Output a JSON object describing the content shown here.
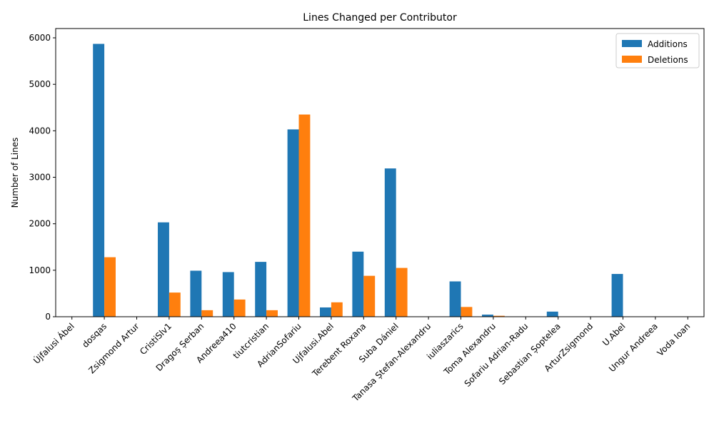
{
  "chart_data": {
    "type": "bar",
    "title": "Lines Changed per Contributor",
    "xlabel": "",
    "ylabel": "Number of Lines",
    "ylim": [
      0,
      6200
    ],
    "yticks": [
      0,
      1000,
      2000,
      3000,
      4000,
      5000,
      6000
    ],
    "legend_position": "top-right",
    "grid": false,
    "categories": [
      "Újfalusi Ábel",
      "dosqas",
      "Zsigmond Artur",
      "CristiSlv1",
      "Dragoș Șerban",
      "Andreea410",
      "tiutcristian",
      "AdrianSofariu",
      "Ujfalusi.Abel",
      "Terebent Roxana",
      "Suba Dániel",
      "Tanasa Ștefan-Alexandru",
      "iuliaszarics",
      "Toma Alexandru",
      "Sofariu Adrian-Radu",
      "Sebastian Șoptelea",
      "ArturZsigmond",
      "U.Abel",
      "Ungur Andreea",
      "Voda Ioan"
    ],
    "series": [
      {
        "name": "Additions",
        "color": "#1f77b4",
        "values": [
          0,
          5870,
          0,
          2030,
          990,
          960,
          1180,
          4030,
          200,
          1400,
          3190,
          0,
          760,
          45,
          0,
          110,
          0,
          920,
          0,
          0
        ]
      },
      {
        "name": "Deletions",
        "color": "#ff7f0e",
        "values": [
          0,
          1280,
          0,
          520,
          140,
          370,
          140,
          4350,
          310,
          880,
          1050,
          0,
          210,
          20,
          0,
          0,
          0,
          0,
          0,
          0
        ]
      }
    ]
  }
}
